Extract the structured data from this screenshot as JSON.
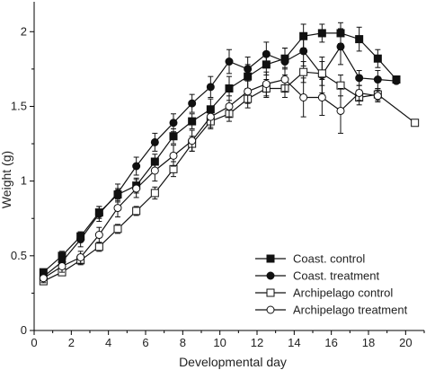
{
  "chart_data": {
    "type": "line",
    "xlabel": "Developmental day",
    "ylabel": "Weight (g)",
    "xlim": [
      0,
      21
    ],
    "ylim": [
      0,
      2.2
    ],
    "xticks": [
      0,
      2,
      4,
      6,
      8,
      10,
      12,
      14,
      16,
      18,
      20
    ],
    "yticks": [
      0,
      0.5,
      1,
      1.5,
      2
    ],
    "ytick_labels": [
      "0",
      "0.5",
      "1",
      "1.5",
      "2"
    ],
    "grid": false,
    "legend_position": "bottom-right",
    "series": [
      {
        "name": "Coast. control",
        "marker": "square-filled",
        "x": [
          0.5,
          1.5,
          2.5,
          3.5,
          4.5,
          5.5,
          6.5,
          7.5,
          8.5,
          9.5,
          10.5,
          11.5,
          12.5,
          13.5,
          14.5,
          15.5,
          16.5,
          17.5,
          18.5,
          19.5
        ],
        "y": [
          0.39,
          0.5,
          0.63,
          0.79,
          0.91,
          0.97,
          1.13,
          1.3,
          1.4,
          1.48,
          1.62,
          1.7,
          1.78,
          1.82,
          1.97,
          1.99,
          1.99,
          1.95,
          1.82,
          1.68
        ],
        "err": [
          0.02,
          0.03,
          0.03,
          0.04,
          0.04,
          0.05,
          0.05,
          0.05,
          0.05,
          0.07,
          0.08,
          0.08,
          0.07,
          0.07,
          0.08,
          0.06,
          0.07,
          0.08,
          0.06,
          0.0
        ]
      },
      {
        "name": "Coast. treatment",
        "marker": "circle-filled",
        "x": [
          0.5,
          1.5,
          2.5,
          3.5,
          4.5,
          5.5,
          6.5,
          7.5,
          8.5,
          9.5,
          10.5,
          11.5,
          12.5,
          13.5,
          14.5,
          15.5,
          16.5,
          17.5,
          18.5,
          19.5
        ],
        "y": [
          0.36,
          0.46,
          0.61,
          0.78,
          0.92,
          1.1,
          1.26,
          1.39,
          1.52,
          1.63,
          1.8,
          1.75,
          1.85,
          1.8,
          1.87,
          1.71,
          1.9,
          1.69,
          1.68,
          1.67
        ],
        "err": [
          0.03,
          0.03,
          0.05,
          0.05,
          0.06,
          0.06,
          0.06,
          0.06,
          0.06,
          0.07,
          0.08,
          0.08,
          0.08,
          0.09,
          0.1,
          0.12,
          0.12,
          0.05,
          0.06,
          0.0
        ]
      },
      {
        "name": "Archipelago control",
        "marker": "square-open",
        "x": [
          0.5,
          1.5,
          2.5,
          3.5,
          4.5,
          5.5,
          6.5,
          7.5,
          8.5,
          9.5,
          10.5,
          11.5,
          12.5,
          13.5,
          14.5,
          15.5,
          16.5,
          17.5,
          18.5,
          20.5
        ],
        "y": [
          0.33,
          0.39,
          0.47,
          0.56,
          0.68,
          0.8,
          0.92,
          1.08,
          1.25,
          1.4,
          1.45,
          1.55,
          1.62,
          1.62,
          1.73,
          1.72,
          1.64,
          1.56,
          1.58,
          1.39
        ],
        "err": [
          0.02,
          0.02,
          0.03,
          0.03,
          0.03,
          0.03,
          0.04,
          0.05,
          0.05,
          0.05,
          0.05,
          0.06,
          0.06,
          0.06,
          0.07,
          0.08,
          0.07,
          0.05,
          0.04,
          0.0
        ]
      },
      {
        "name": "Archipelago treatment",
        "marker": "circle-open",
        "x": [
          0.5,
          1.5,
          2.5,
          3.5,
          4.5,
          5.5,
          6.5,
          7.5,
          8.5,
          9.5,
          10.5,
          11.5,
          12.5,
          13.5,
          14.5,
          15.5,
          16.5,
          17.5,
          18.5
        ],
        "y": [
          0.35,
          0.43,
          0.49,
          0.64,
          0.82,
          0.95,
          1.07,
          1.17,
          1.27,
          1.43,
          1.5,
          1.6,
          1.65,
          1.68,
          1.56,
          1.56,
          1.47,
          1.59,
          1.57
        ],
        "err": [
          0.03,
          0.04,
          0.04,
          0.05,
          0.06,
          0.06,
          0.07,
          0.07,
          0.07,
          0.07,
          0.07,
          0.08,
          0.08,
          0.08,
          0.13,
          0.12,
          0.15,
          0.05,
          0.04
        ]
      }
    ]
  }
}
